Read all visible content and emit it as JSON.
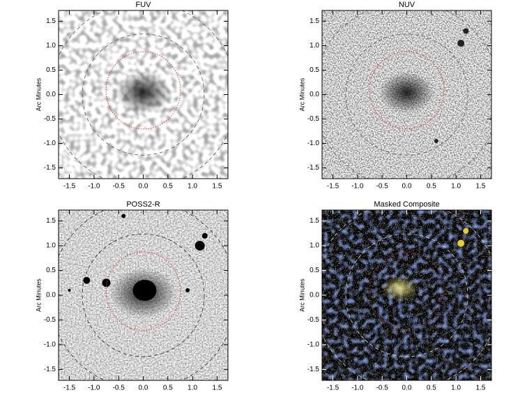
{
  "chart_data": [
    {
      "type": "image",
      "title": "FUV",
      "ylabel": "Arc Minutes",
      "xlim": [
        -1.72,
        1.72
      ],
      "ylim": [
        -1.72,
        1.72
      ],
      "xticks": [
        -1.5,
        {
          "value": -1,
          "label": "-1.0"
        },
        -0.5,
        {
          "value": 0,
          "label": "0.0"
        },
        0.5,
        {
          "value": 1,
          "label": "1.0"
        },
        1.5
      ],
      "yticks": [
        -1.5,
        {
          "value": -1,
          "label": "-1.0"
        },
        -0.5,
        {
          "value": 0,
          "label": "0.0"
        },
        0.5,
        {
          "value": 1,
          "label": "1.0"
        },
        1.5
      ]
    },
    {
      "type": "image",
      "title": "NUV",
      "ylabel": "Arc Minutes",
      "xlim": [
        -1.72,
        1.72
      ],
      "ylim": [
        -1.72,
        1.72
      ],
      "xticks": [
        -1.5,
        {
          "value": -1,
          "label": "-1.0"
        },
        -0.5,
        {
          "value": 0,
          "label": "0.0"
        },
        0.5,
        {
          "value": 1,
          "label": "1.0"
        },
        1.5
      ],
      "yticks": [
        -1.5,
        {
          "value": -1,
          "label": "-1.0"
        },
        -0.5,
        {
          "value": 0,
          "label": "0.0"
        },
        0.5,
        {
          "value": 1,
          "label": "1.0"
        },
        1.5
      ]
    },
    {
      "type": "image",
      "title": "POSS2-R",
      "ylabel": "Arc Minutes",
      "xlim": [
        -1.72,
        1.72
      ],
      "ylim": [
        -1.72,
        1.72
      ],
      "xticks": [
        -1.5,
        {
          "value": -1,
          "label": "-1.0"
        },
        -0.5,
        {
          "value": 0,
          "label": "0.0"
        },
        0.5,
        {
          "value": 1,
          "label": "1.0"
        },
        1.5
      ],
      "yticks": [
        -1.5,
        {
          "value": -1,
          "label": "-1.0"
        },
        -0.5,
        {
          "value": 0,
          "label": "0.0"
        },
        0.5,
        {
          "value": 1,
          "label": "1.0"
        },
        1.5
      ]
    },
    {
      "type": "image",
      "title": "Masked Composite",
      "ylabel": "Arc Minutes",
      "xlim": [
        -1.72,
        1.72
      ],
      "ylim": [
        -1.72,
        1.72
      ],
      "xticks": [
        -1.5,
        {
          "value": -1,
          "label": "-1.0"
        },
        -0.5,
        {
          "value": 0,
          "label": "0.0"
        },
        0.5,
        {
          "value": 1,
          "label": "1.0"
        },
        1.5
      ],
      "yticks": [
        -1.5,
        {
          "value": -1,
          "label": "-1.0"
        },
        -0.5,
        {
          "value": 0,
          "label": "0.0"
        },
        0.5,
        {
          "value": 1,
          "label": "1.0"
        },
        1.5
      ]
    }
  ]
}
